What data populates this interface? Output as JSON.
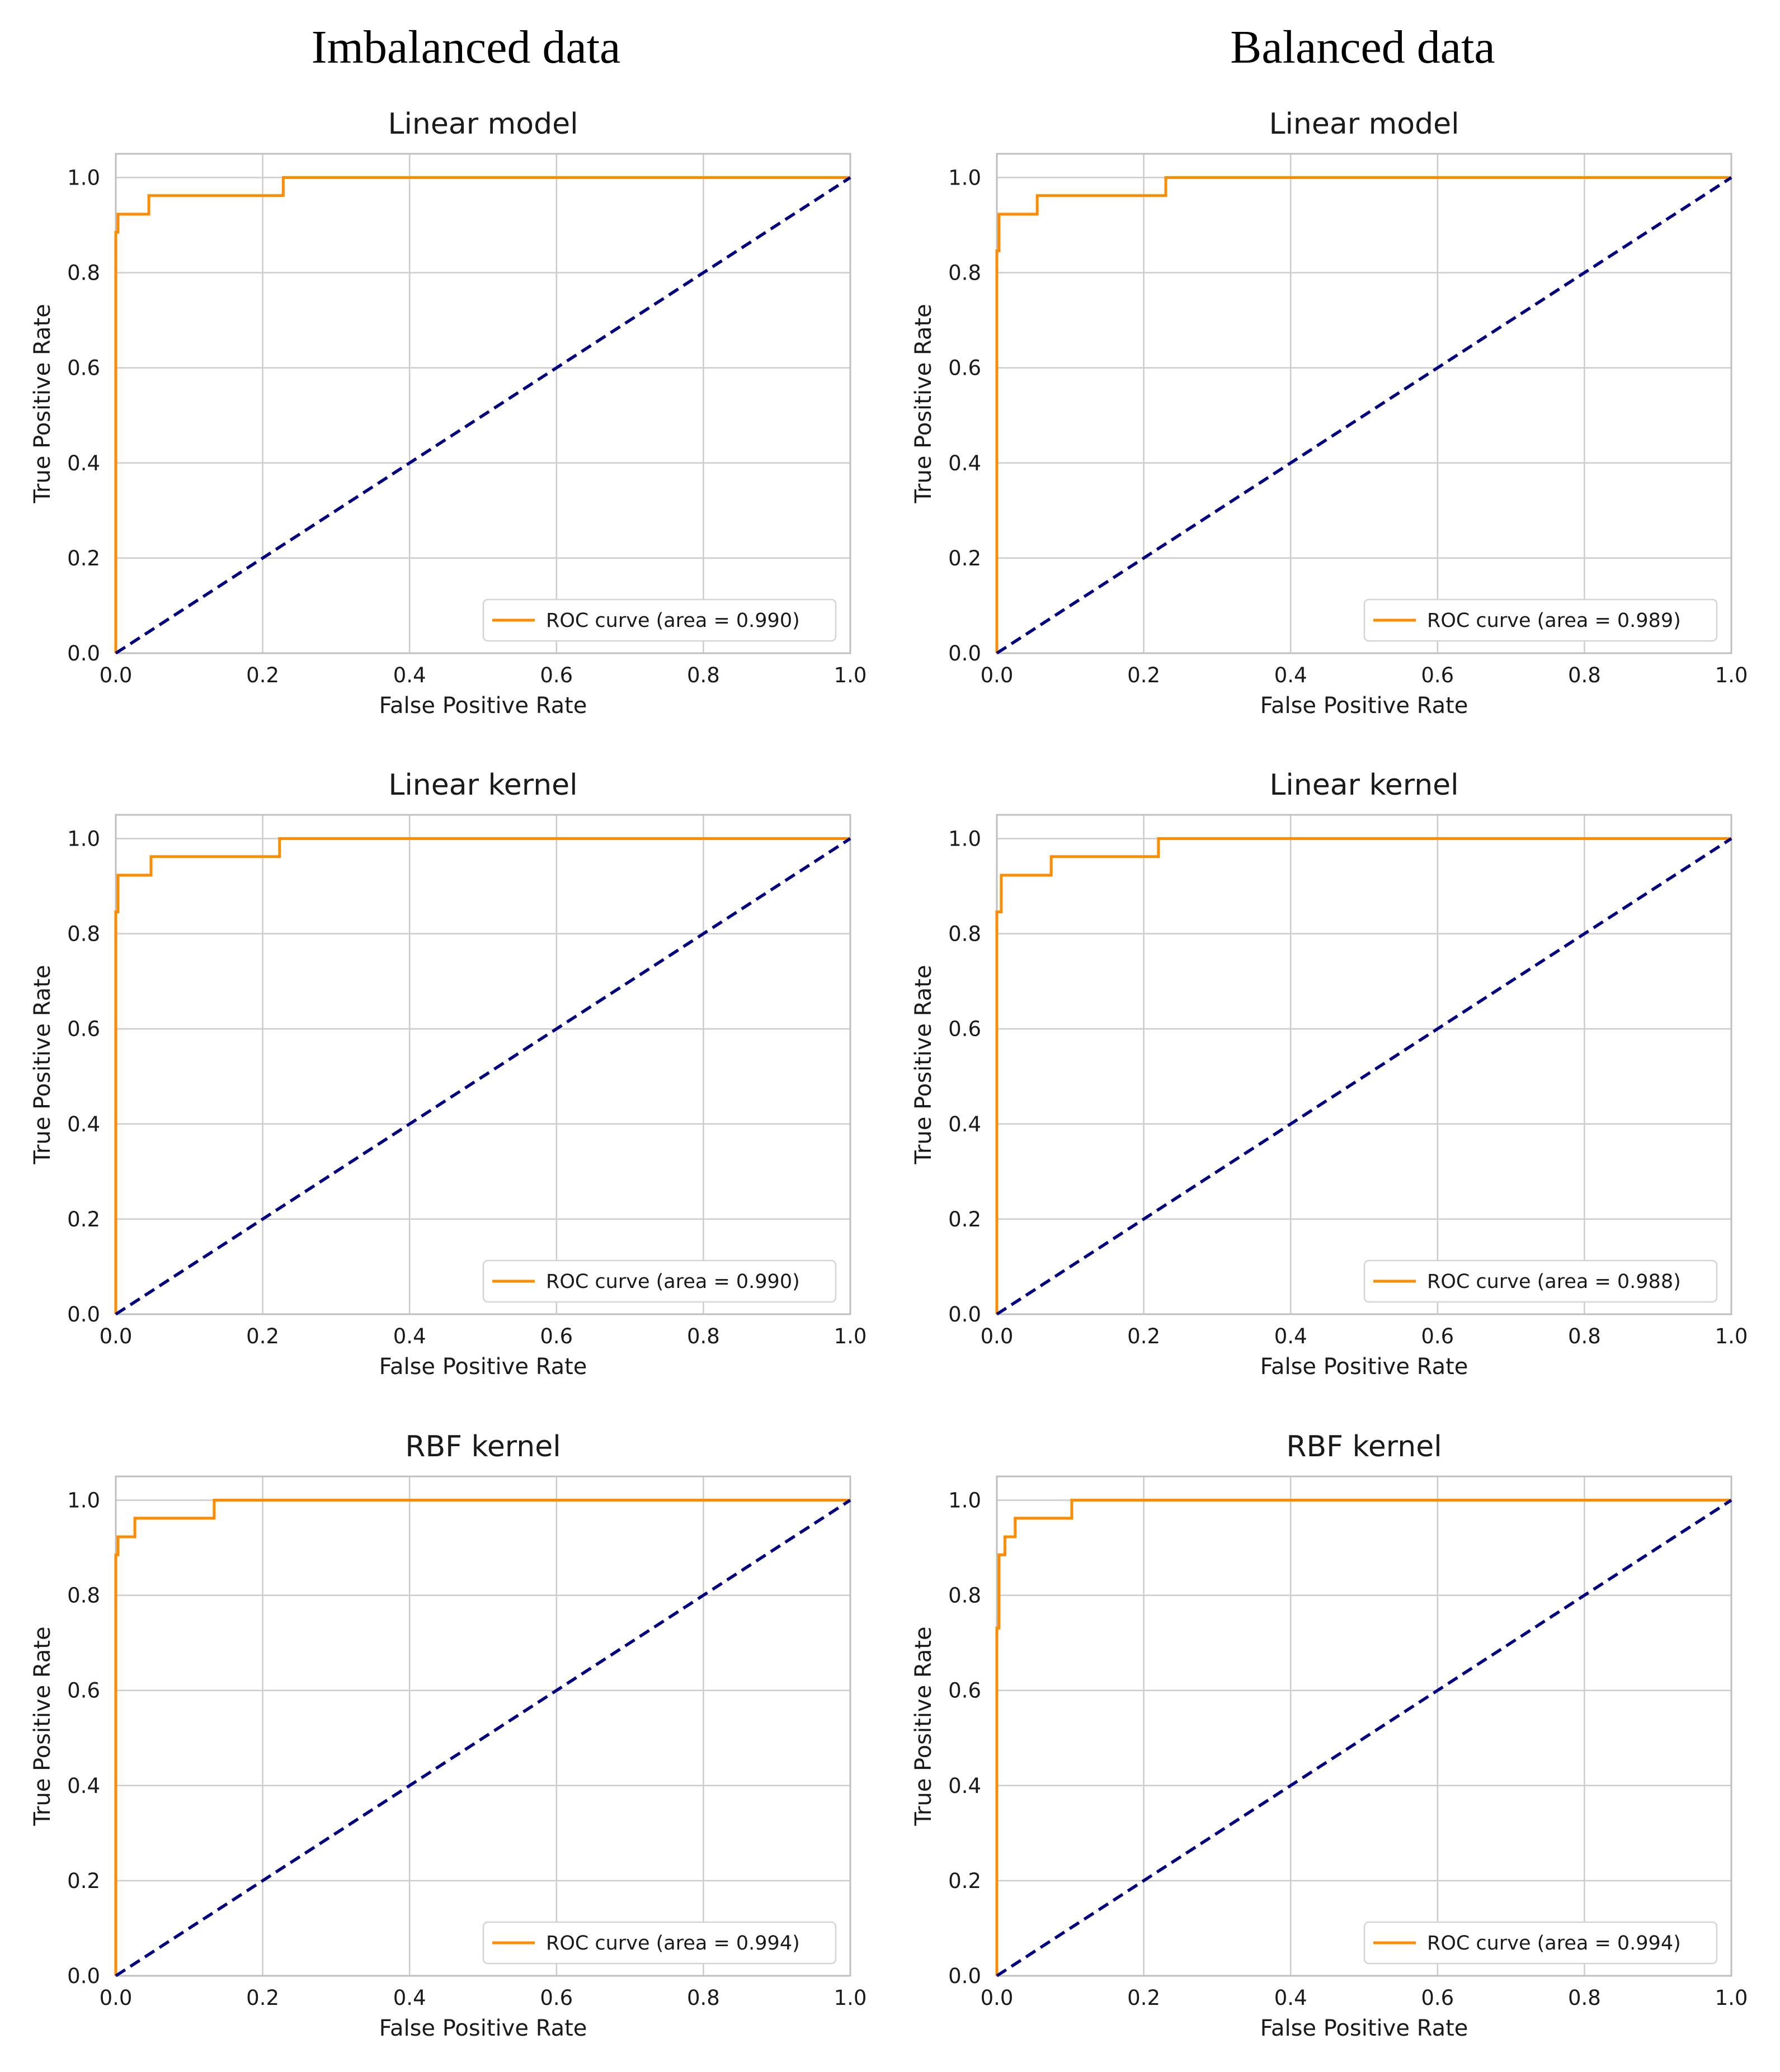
{
  "column_titles": [
    "Imbalanced data",
    "Balanced data"
  ],
  "colors": {
    "roc": "#ff8c00",
    "chance": "#000080",
    "grid": "#cccccc",
    "frame": "#bfbfbf"
  },
  "chart_data": [
    {
      "type": "line",
      "column": "Imbalanced data",
      "title": "Linear model",
      "xlabel": "False Positive Rate",
      "ylabel": "True Positive Rate",
      "xlim": [
        0,
        1
      ],
      "ylim": [
        0,
        1.05
      ],
      "xticks": [
        "0.0",
        "0.2",
        "0.4",
        "0.6",
        "0.8",
        "1.0"
      ],
      "yticks": [
        "0.0",
        "0.2",
        "0.4",
        "0.6",
        "0.8",
        "1.0"
      ],
      "legend_location": "lower right",
      "series": [
        {
          "name": "ROC curve (area = 0.990)",
          "x": [
            0,
            0,
            0.003,
            0.003,
            0.045,
            0.045,
            0.228,
            0.228,
            1
          ],
          "y": [
            0,
            0.885,
            0.885,
            0.923,
            0.923,
            0.962,
            0.962,
            1.0,
            1.0
          ]
        },
        {
          "name": "chance",
          "style": "dashed",
          "x": [
            0,
            1
          ],
          "y": [
            0,
            1
          ]
        }
      ]
    },
    {
      "type": "line",
      "column": "Balanced data",
      "title": "Linear model",
      "xlabel": "False Positive Rate",
      "ylabel": "True Positive Rate",
      "xlim": [
        0,
        1
      ],
      "ylim": [
        0,
        1.05
      ],
      "xticks": [
        "0.0",
        "0.2",
        "0.4",
        "0.6",
        "0.8",
        "1.0"
      ],
      "yticks": [
        "0.0",
        "0.2",
        "0.4",
        "0.6",
        "0.8",
        "1.0"
      ],
      "legend_location": "lower right",
      "series": [
        {
          "name": "ROC curve (area = 0.989)",
          "x": [
            0,
            0,
            0.003,
            0.003,
            0.055,
            0.055,
            0.23,
            0.23,
            1
          ],
          "y": [
            0,
            0.846,
            0.846,
            0.923,
            0.923,
            0.962,
            0.962,
            1.0,
            1.0
          ]
        },
        {
          "name": "chance",
          "style": "dashed",
          "x": [
            0,
            1
          ],
          "y": [
            0,
            1
          ]
        }
      ]
    },
    {
      "type": "line",
      "column": "Imbalanced data",
      "title": "Linear kernel",
      "xlabel": "False Positive Rate",
      "ylabel": "True Positive Rate",
      "xlim": [
        0,
        1
      ],
      "ylim": [
        0,
        1.05
      ],
      "xticks": [
        "0.0",
        "0.2",
        "0.4",
        "0.6",
        "0.8",
        "1.0"
      ],
      "yticks": [
        "0.0",
        "0.2",
        "0.4",
        "0.6",
        "0.8",
        "1.0"
      ],
      "legend_location": "lower right",
      "series": [
        {
          "name": "ROC curve (area = 0.990)",
          "x": [
            0,
            0,
            0.003,
            0.003,
            0.048,
            0.048,
            0.223,
            0.223,
            1
          ],
          "y": [
            0,
            0.846,
            0.846,
            0.923,
            0.923,
            0.962,
            0.962,
            1.0,
            1.0
          ]
        },
        {
          "name": "chance",
          "style": "dashed",
          "x": [
            0,
            1
          ],
          "y": [
            0,
            1
          ]
        }
      ]
    },
    {
      "type": "line",
      "column": "Balanced data",
      "title": "Linear kernel",
      "xlabel": "False Positive Rate",
      "ylabel": "True Positive Rate",
      "xlim": [
        0,
        1
      ],
      "ylim": [
        0,
        1.05
      ],
      "xticks": [
        "0.0",
        "0.2",
        "0.4",
        "0.6",
        "0.8",
        "1.0"
      ],
      "yticks": [
        "0.0",
        "0.2",
        "0.4",
        "0.6",
        "0.8",
        "1.0"
      ],
      "legend_location": "lower right",
      "series": [
        {
          "name": "ROC curve (area = 0.988)",
          "x": [
            0,
            0,
            0.006,
            0.006,
            0.074,
            0.074,
            0.22,
            0.22,
            1
          ],
          "y": [
            0,
            0.846,
            0.846,
            0.923,
            0.923,
            0.962,
            0.962,
            1.0,
            1.0
          ]
        },
        {
          "name": "chance",
          "style": "dashed",
          "x": [
            0,
            1
          ],
          "y": [
            0,
            1
          ]
        }
      ]
    },
    {
      "type": "line",
      "column": "Imbalanced data",
      "title": "RBF kernel",
      "xlabel": "False Positive Rate",
      "ylabel": "True Positive Rate",
      "xlim": [
        0,
        1
      ],
      "ylim": [
        0,
        1.05
      ],
      "xticks": [
        "0.0",
        "0.2",
        "0.4",
        "0.6",
        "0.8",
        "1.0"
      ],
      "yticks": [
        "0.0",
        "0.2",
        "0.4",
        "0.6",
        "0.8",
        "1.0"
      ],
      "legend_location": "lower right",
      "series": [
        {
          "name": "ROC curve (area = 0.994)",
          "x": [
            0,
            0,
            0.003,
            0.003,
            0.026,
            0.026,
            0.134,
            0.134,
            1
          ],
          "y": [
            0,
            0.885,
            0.885,
            0.923,
            0.923,
            0.962,
            0.962,
            1.0,
            1.0
          ]
        },
        {
          "name": "chance",
          "style": "dashed",
          "x": [
            0,
            1
          ],
          "y": [
            0,
            1
          ]
        }
      ]
    },
    {
      "type": "line",
      "column": "Balanced data",
      "title": "RBF kernel",
      "xlabel": "False Positive Rate",
      "ylabel": "True Positive Rate",
      "xlim": [
        0,
        1
      ],
      "ylim": [
        0,
        1.05
      ],
      "xticks": [
        "0.0",
        "0.2",
        "0.4",
        "0.6",
        "0.8",
        "1.0"
      ],
      "yticks": [
        "0.0",
        "0.2",
        "0.4",
        "0.6",
        "0.8",
        "1.0"
      ],
      "legend_location": "lower right",
      "series": [
        {
          "name": "ROC curve (area = 0.994)",
          "x": [
            0,
            0,
            0.003,
            0.003,
            0.011,
            0.011,
            0.025,
            0.025,
            0.102,
            0.102,
            1
          ],
          "y": [
            0,
            0.731,
            0.731,
            0.885,
            0.885,
            0.923,
            0.923,
            0.962,
            0.962,
            1.0,
            1.0
          ]
        },
        {
          "name": "chance",
          "style": "dashed",
          "x": [
            0,
            1
          ],
          "y": [
            0,
            1
          ]
        }
      ]
    }
  ]
}
